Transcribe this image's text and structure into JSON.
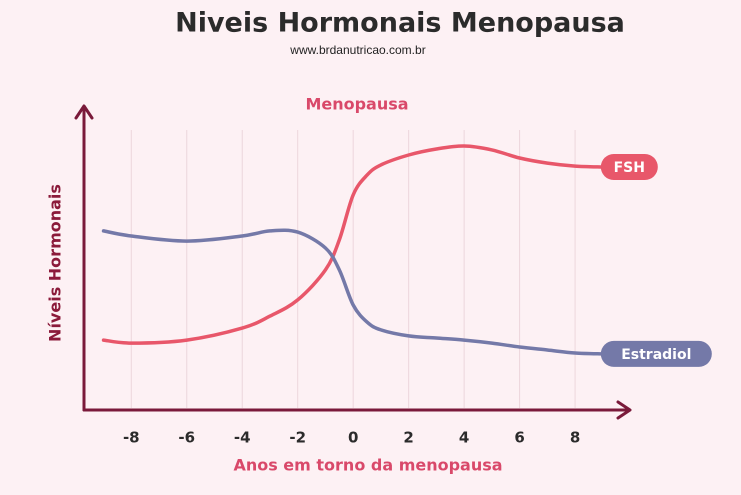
{
  "chart_data": {
    "type": "line",
    "title": "Niveis Hormonais Menopausa",
    "subtitle": "www.brdanutricao.com.br",
    "annotation": "Menopausa",
    "x_label": "Anos em torno da menopausa",
    "y_label": "Níveis Hormonais",
    "x": [
      -9,
      -8,
      -6,
      -4,
      -3,
      -2,
      -1,
      -0.5,
      0,
      0.5,
      1,
      2,
      3,
      4,
      5,
      6,
      7,
      8,
      9
    ],
    "series": [
      {
        "name": "FSH",
        "color": "#e8576a",
        "values": [
          23.3,
          22.3,
          23.3,
          27.3,
          31.3,
          36.7,
          46.7,
          56.7,
          71.7,
          78.3,
          81.7,
          85,
          87,
          88,
          86.7,
          84,
          82.3,
          81.3,
          81
        ]
      },
      {
        "name": "Estradiol",
        "color": "#7479a8",
        "values": [
          59.7,
          58,
          56.3,
          58,
          59.7,
          59.3,
          54,
          46.7,
          35,
          29.3,
          26.7,
          24.7,
          24,
          23.3,
          22.3,
          21,
          20,
          19,
          18.7
        ]
      }
    ],
    "xlim": [
      -9.2,
      9.8
    ],
    "xticks": [
      -8,
      -6,
      -4,
      -2,
      0,
      2,
      4,
      6,
      8
    ],
    "ylim": [
      0,
      100
    ],
    "grid": true
  }
}
